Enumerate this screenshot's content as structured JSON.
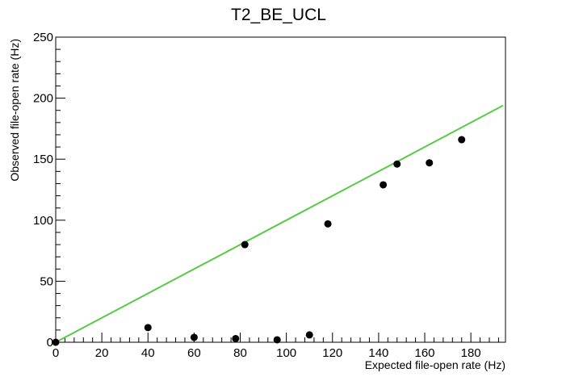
{
  "chart_data": {
    "type": "scatter",
    "title": "T2_BE_UCL",
    "xlabel": "Expected file-open rate (Hz)",
    "ylabel": "Observed file-open rate (Hz)",
    "xlim": [
      0,
      195
    ],
    "ylim": [
      0,
      250
    ],
    "x_ticks": [
      "0",
      "20",
      "40",
      "60",
      "80",
      "100",
      "120",
      "140",
      "160",
      "180"
    ],
    "y_ticks": [
      "0",
      "50",
      "100",
      "150",
      "200",
      "250"
    ],
    "grid": false,
    "series": [
      {
        "type": "scatter",
        "color": "#000000",
        "points": [
          {
            "x": 0,
            "y": 0
          },
          {
            "x": 40,
            "y": 12
          },
          {
            "x": 60,
            "y": 4
          },
          {
            "x": 78,
            "y": 3
          },
          {
            "x": 82,
            "y": 80
          },
          {
            "x": 96,
            "y": 2
          },
          {
            "x": 110,
            "y": 6
          },
          {
            "x": 118,
            "y": 97
          },
          {
            "x": 142,
            "y": 129
          },
          {
            "x": 148,
            "y": 146
          },
          {
            "x": 162,
            "y": 147
          },
          {
            "x": 176,
            "y": 166
          }
        ]
      },
      {
        "type": "line",
        "color": "#55cc44",
        "points": [
          {
            "x": 0,
            "y": 0
          },
          {
            "x": 194,
            "y": 194
          }
        ]
      }
    ]
  }
}
